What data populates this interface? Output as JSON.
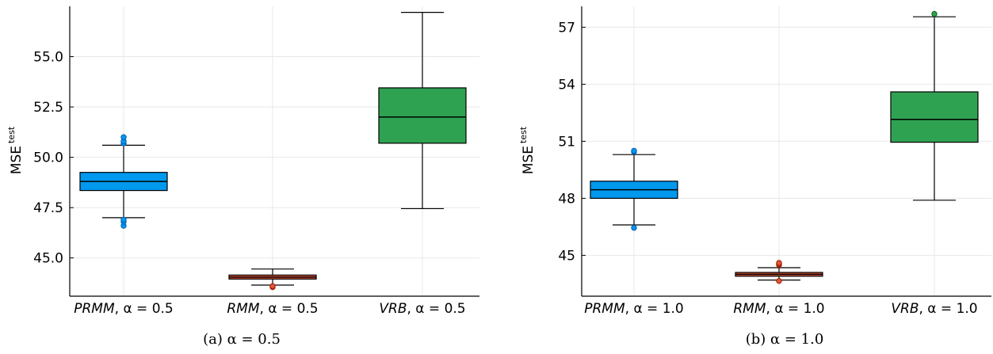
{
  "chart_data": [
    {
      "type": "box",
      "caption": "(a) α = 0.5",
      "ylabel": "MSE",
      "ylabel_sup": "test",
      "ylim": [
        43.1,
        57.5
      ],
      "yticks": [
        45.0,
        47.5,
        50.0,
        52.5,
        55.0
      ],
      "ytick_labels": [
        "45.0",
        "47.5",
        "50.0",
        "52.5",
        "55.0"
      ],
      "grid": true,
      "series": [
        {
          "label_name": "PRMM",
          "label_param": ", α = 0.5",
          "color": "#0099ee",
          "q1": 48.35,
          "median": 48.8,
          "q3": 49.25,
          "whisker_low": 47.0,
          "whisker_high": 50.6,
          "outliers": [
            46.6,
            46.8,
            46.9,
            50.7,
            50.8,
            51.0
          ]
        },
        {
          "label_name": "RMM",
          "label_param": ", α = 0.5",
          "color": "#e0563a",
          "q1": 43.95,
          "median": 44.05,
          "q3": 44.15,
          "whisker_low": 43.65,
          "whisker_high": 44.45,
          "outliers": [
            43.55,
            43.6
          ]
        },
        {
          "label_name": "VRB",
          "label_param": ", α = 0.5",
          "color": "#2fa252",
          "q1": 50.7,
          "median": 52.0,
          "q3": 53.45,
          "whisker_low": 47.45,
          "whisker_high": 57.2,
          "outliers": []
        }
      ]
    },
    {
      "type": "box",
      "caption": "(b) α = 1.0",
      "ylabel": "MSE",
      "ylabel_sup": "test",
      "ylim": [
        42.85,
        58.1
      ],
      "yticks": [
        45,
        48,
        51,
        54,
        57
      ],
      "ytick_labels": [
        "45",
        "48",
        "51",
        "54",
        "57"
      ],
      "grid": true,
      "series": [
        {
          "label_name": "PRMM",
          "label_param": ", α = 1.0",
          "color": "#0099ee",
          "q1": 48.0,
          "median": 48.45,
          "q3": 48.9,
          "whisker_low": 46.6,
          "whisker_high": 50.3,
          "outliers": [
            46.45,
            50.45,
            50.5
          ]
        },
        {
          "label_name": "RMM",
          "label_param": ", α = 1.0",
          "color": "#e0563a",
          "q1": 43.9,
          "median": 44.0,
          "q3": 44.1,
          "whisker_low": 43.7,
          "whisker_high": 44.35,
          "outliers": [
            43.65,
            44.5,
            44.55,
            44.6
          ]
        },
        {
          "label_name": "VRB",
          "label_param": ", α = 1.0",
          "color": "#2fa252",
          "q1": 50.95,
          "median": 52.15,
          "q3": 53.6,
          "whisker_low": 47.9,
          "whisker_high": 57.55,
          "outliers": [
            57.7
          ]
        }
      ]
    }
  ]
}
